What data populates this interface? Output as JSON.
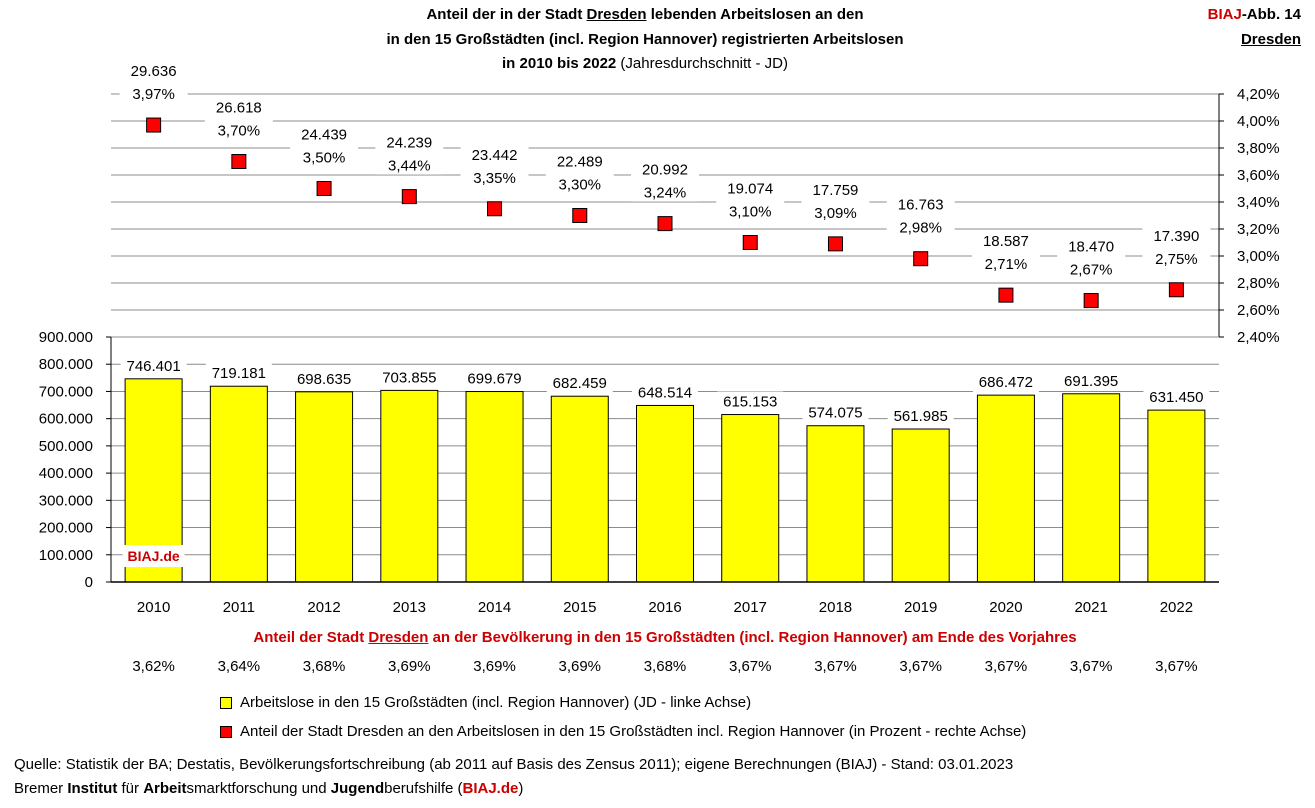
{
  "header": {
    "title_line1_pre": "Anteil der in der Stadt ",
    "title_city": "Dresden",
    "title_line1_post": " lebenden Arbeitslosen an den",
    "title_line2": "in den 15 Großstädten (incl. Region Hannover) registrierten Arbeitslosen",
    "title_line3_bold": "in 2010 bis 2022",
    "title_line3_normal": " (Jahresdurchschnitt - JD)",
    "corner_biaj": "BIAJ",
    "corner_abb": "-Abb. 14",
    "corner_city": "Dresden"
  },
  "chart_data": {
    "type": "bar",
    "categories": [
      "2010",
      "2011",
      "2012",
      "2013",
      "2014",
      "2015",
      "2016",
      "2017",
      "2018",
      "2019",
      "2020",
      "2021",
      "2022"
    ],
    "series": [
      {
        "name": "Arbeitslose in den 15 Großstädten (incl. Region Hannover) (JD - linke Achse)",
        "kind": "bar",
        "color": "#ffff00",
        "values": [
          746401,
          719181,
          698635,
          703855,
          699679,
          682459,
          648514,
          615153,
          574075,
          561985,
          686472,
          691395,
          631450
        ],
        "labels": [
          "746.401",
          "719.181",
          "698.635",
          "703.855",
          "699.679",
          "682.459",
          "648.514",
          "615.153",
          "574.075",
          "561.985",
          "686.472",
          "691.395",
          "631.450"
        ]
      },
      {
        "name": "Anteil der Stadt Dresden an den Arbeitslosen in den 15 Großstädten incl. Region Hannover (in Prozent - rechte Achse)",
        "kind": "marker",
        "color": "#ff0000",
        "values": [
          3.97,
          3.7,
          3.5,
          3.44,
          3.35,
          3.3,
          3.24,
          3.1,
          3.09,
          2.98,
          2.71,
          2.67,
          2.75
        ],
        "labels": [
          "3,97%",
          "3,70%",
          "3,50%",
          "3,44%",
          "3,35%",
          "3,30%",
          "3,24%",
          "3,10%",
          "3,09%",
          "2,98%",
          "2,71%",
          "2,67%",
          "2,75%"
        ],
        "counts": [
          "29.636",
          "26.618",
          "24.439",
          "24.239",
          "23.442",
          "22.489",
          "20.992",
          "19.074",
          "17.759",
          "16.763",
          "18.587",
          "18.470",
          "17.390"
        ]
      }
    ],
    "left_axis": {
      "min": 0,
      "max": 900000,
      "ticks": [
        "0",
        "100.000",
        "200.000",
        "300.000",
        "400.000",
        "500.000",
        "600.000",
        "700.000",
        "800.000",
        "900.000"
      ]
    },
    "right_axis": {
      "min": 2.4,
      "max": 4.2,
      "ticks": [
        "2,40%",
        "2,60%",
        "2,80%",
        "3,00%",
        "3,20%",
        "3,40%",
        "3,60%",
        "3,80%",
        "4,00%",
        "4,20%"
      ]
    },
    "grid": true,
    "watermark": "BIAJ.de",
    "population_share": {
      "title_pre": "Anteil der Stadt ",
      "title_city": "Dresden",
      "title_post": " an der Bevölkerung in den 15 Großstädten (incl. Region Hannover) am Ende des Vorjahres",
      "values": [
        "3,62%",
        "3,64%",
        "3,68%",
        "3,69%",
        "3,69%",
        "3,69%",
        "3,68%",
        "3,67%",
        "3,67%",
        "3,67%",
        "3,67%",
        "3,67%",
        "3,67%"
      ]
    }
  },
  "legend": {
    "bar_label": "Arbeitslose in den 15 Großstädten (incl. Region Hannover) (JD - linke Achse)",
    "marker_label": "Anteil der Stadt Dresden an den Arbeitslosen in den 15 Großstädten incl. Region Hannover (in Prozent - rechte Achse)"
  },
  "footer": {
    "source": "Quelle: Statistik der BA; Destatis, Bevölkerungsfortschreibung (ab 2011 auf Basis des Zensus 2011); eigene Berechnungen (BIAJ) - Stand: 03.01.2023",
    "inst_1": "Bremer ",
    "inst_2": "Institut",
    "inst_3": " für ",
    "inst_4": "Arbeit",
    "inst_5": "smarktforschung und ",
    "inst_6": "Jugend",
    "inst_7": "berufshilfe (",
    "inst_8": "BIAJ.de",
    "inst_9": ")"
  },
  "colors": {
    "accent": "#cc0000",
    "bar": "#ffff00",
    "marker": "#ff0000"
  }
}
